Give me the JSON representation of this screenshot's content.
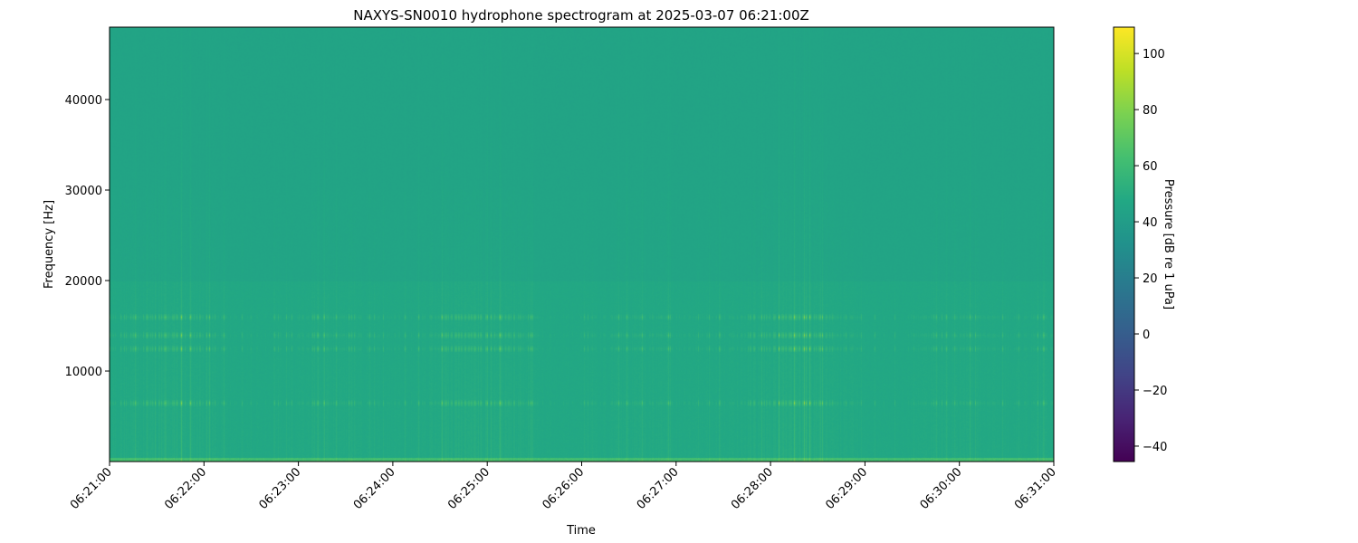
{
  "chart_data": {
    "type": "heatmap",
    "title": "NAXYS-SN0010 hydrophone spectrogram at 2025-03-07 06:21:00Z",
    "xlabel": "Time",
    "ylabel": "Frequency [Hz]",
    "x_ticks": [
      "06:21:00",
      "06:22:00",
      "06:23:00",
      "06:24:00",
      "06:25:00",
      "06:26:00",
      "06:27:00",
      "06:28:00",
      "06:29:00",
      "06:30:00",
      "06:31:00"
    ],
    "xlim": [
      "06:21:00",
      "06:31:00"
    ],
    "y_ticks": [
      10000,
      20000,
      30000,
      40000
    ],
    "ylim": [
      0,
      48000
    ],
    "colormap": "viridis",
    "colorbar": {
      "label": "Pressure [dB re 1 uPa]",
      "ticks": [
        100,
        80,
        60,
        40,
        20,
        0,
        -20,
        -40
      ],
      "range": [
        -45.5,
        109.4
      ]
    },
    "background_level_db": 45,
    "tonal_bands_hz": [
      6500,
      12500,
      14000,
      16000
    ],
    "low_frequency_band_hz": [
      0,
      500
    ]
  }
}
